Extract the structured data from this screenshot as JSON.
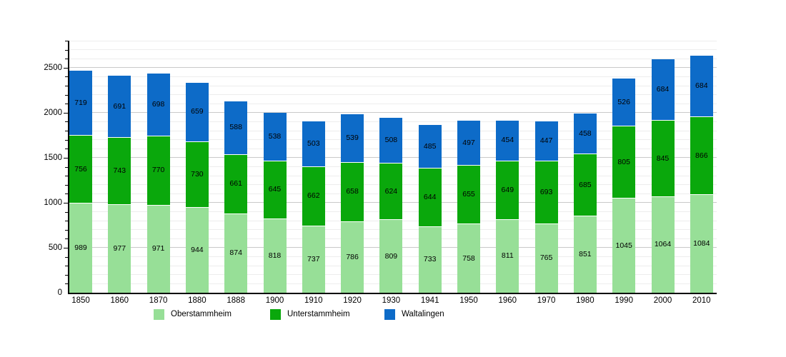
{
  "chart_data": {
    "type": "bar",
    "stacked": true,
    "title": "",
    "xlabel": "",
    "ylabel": "",
    "categories": [
      "1850",
      "1860",
      "1870",
      "1880",
      "1888",
      "1900",
      "1910",
      "1920",
      "1930",
      "1941",
      "1950",
      "1960",
      "1970",
      "1980",
      "1990",
      "2000",
      "2010"
    ],
    "series": [
      {
        "name": "Oberstammheim",
        "color": "#97DF97",
        "values": [
          989,
          977,
          971,
          944,
          874,
          818,
          737,
          786,
          809,
          733,
          758,
          811,
          765,
          851,
          1045,
          1064,
          1084
        ]
      },
      {
        "name": "Unterstammheim",
        "color": "#0AA80C",
        "values": [
          756,
          743,
          770,
          730,
          661,
          645,
          662,
          658,
          624,
          644,
          655,
          649,
          693,
          685,
          805,
          845,
          866
        ]
      },
      {
        "name": "Waltalingen",
        "color": "#0D6BC8",
        "values": [
          719,
          691,
          698,
          659,
          588,
          538,
          503,
          539,
          508,
          485,
          497,
          454,
          447,
          458,
          526,
          684,
          684
        ]
      }
    ],
    "ylim": [
      0,
      2800
    ],
    "yticks": [
      0,
      500,
      1000,
      1500,
      2000,
      2500
    ],
    "minor_grid_step": 100,
    "grid": true,
    "grid_minor_color": "#ededed",
    "grid_major_color": "#c9c9c9",
    "axis_color": "#000000",
    "value_label_color": "#000000",
    "legend_position": "bottom"
  }
}
